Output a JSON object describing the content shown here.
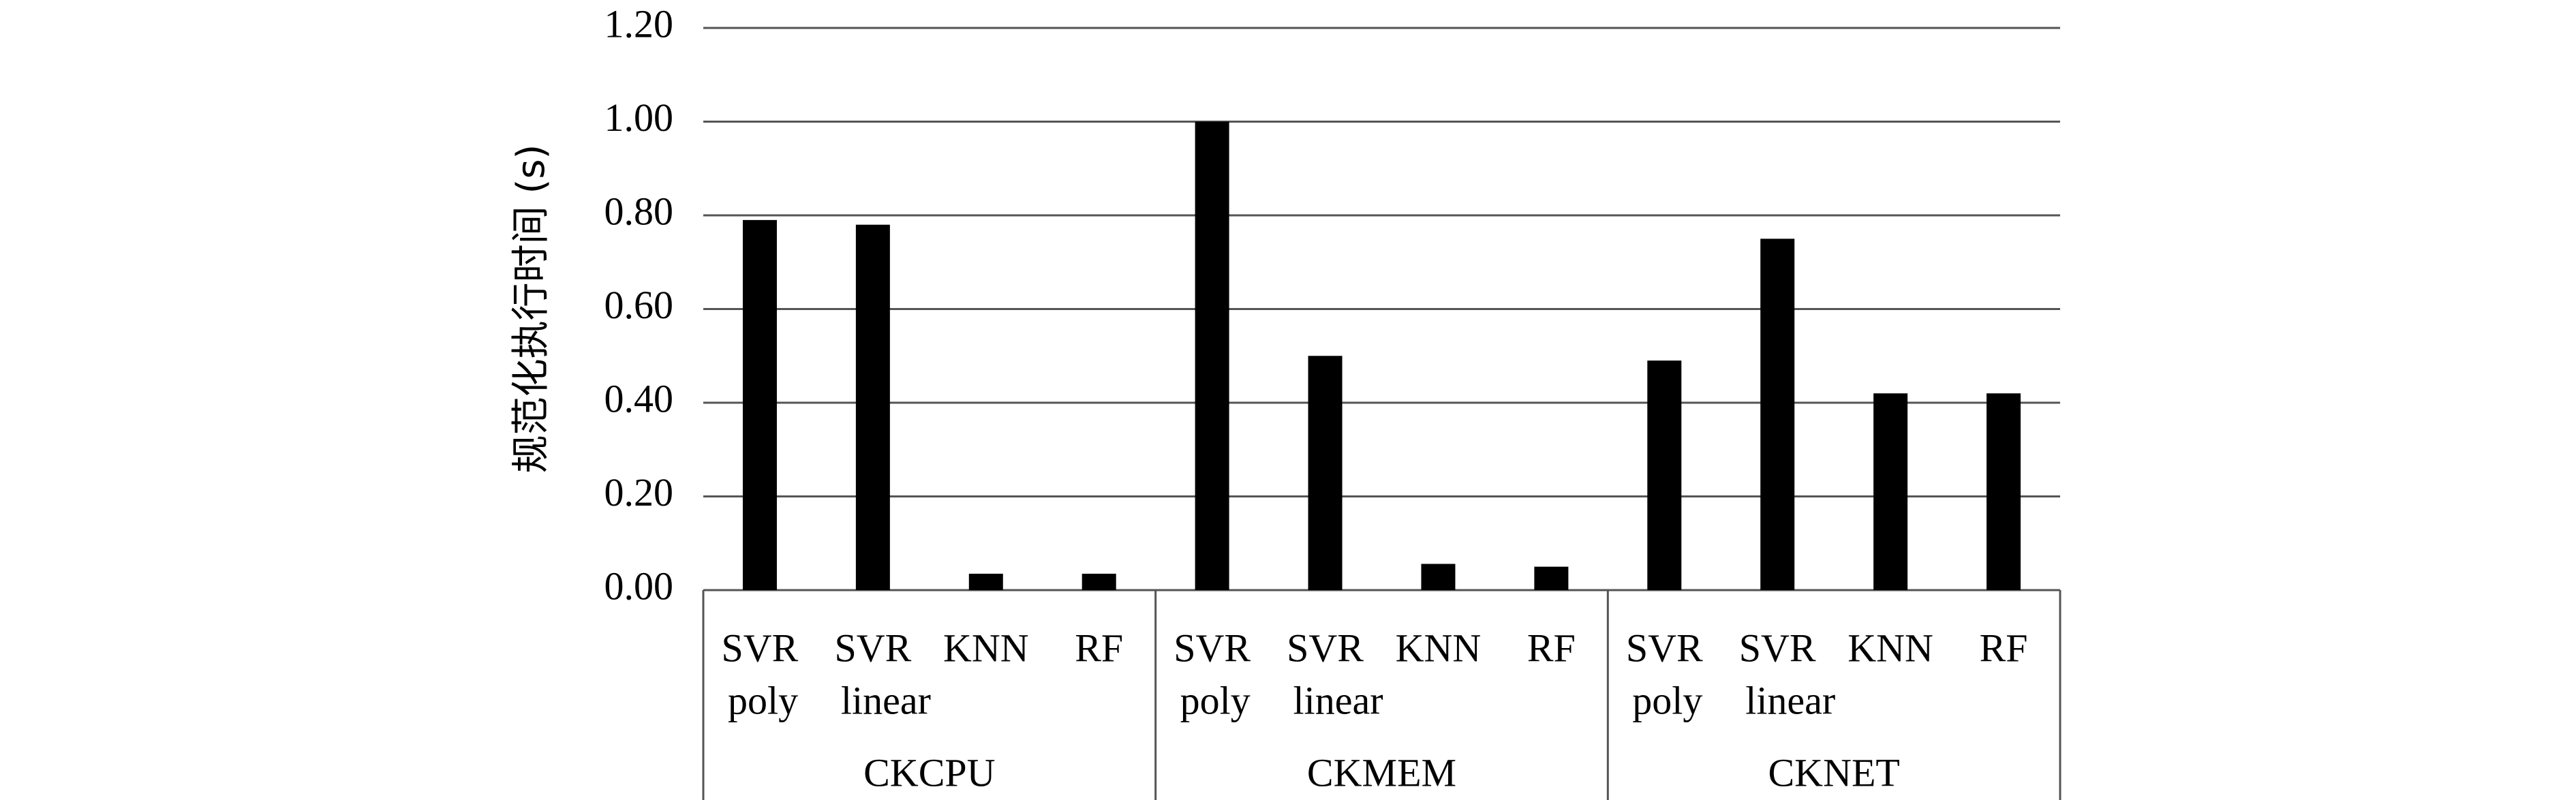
{
  "chart_data": {
    "type": "bar",
    "y_label": "规范化执行时间 (s)",
    "color": "#000000",
    "grid": true,
    "ylim": [
      0,
      1.2
    ],
    "yticks": [
      {
        "value": 0,
        "label": "0.00"
      },
      {
        "value": 0.2,
        "label": "0.20"
      },
      {
        "value": 0.4,
        "label": "0.40"
      },
      {
        "value": 0.6,
        "label": "0.60"
      },
      {
        "value": 0.8,
        "label": "0.80"
      },
      {
        "value": 1,
        "label": "1.00"
      },
      {
        "value": 1.2,
        "label": "1.20"
      }
    ],
    "groups": [
      {
        "name": "CKCPU",
        "categories": [
          [
            "SVR",
            "poly"
          ],
          [
            "SVR",
            "linear"
          ],
          [
            "KNN"
          ],
          [
            "RF"
          ]
        ],
        "values": [
          0.79,
          0.78,
          0.035,
          0.035
        ]
      },
      {
        "name": "CKMEM",
        "categories": [
          [
            "SVR",
            "poly"
          ],
          [
            "SVR",
            "linear"
          ],
          [
            "KNN"
          ],
          [
            "RF"
          ]
        ],
        "values": [
          1.0,
          0.5,
          0.056,
          0.05
        ]
      },
      {
        "name": "CKNET",
        "categories": [
          [
            "SVR",
            "poly"
          ],
          [
            "SVR",
            "linear"
          ],
          [
            "KNN"
          ],
          [
            "RF"
          ]
        ],
        "values": [
          0.49,
          0.75,
          0.42,
          0.42
        ]
      }
    ]
  }
}
